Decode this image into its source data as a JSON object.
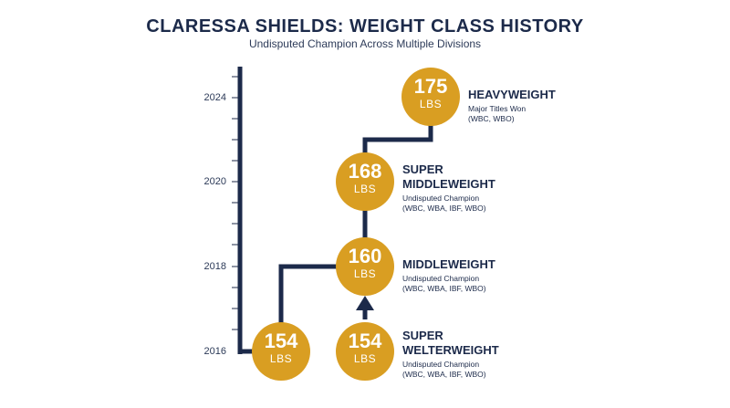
{
  "header": {
    "title": "CLARESSA SHIELDS: WEIGHT CLASS HISTORY",
    "subtitle": "Undisputed Champion Across Multiple Divisions"
  },
  "timeline": {
    "years": [
      "2024",
      "2020",
      "2018",
      "2016"
    ]
  },
  "nodes": [
    {
      "weight": "154",
      "unit": "LBS",
      "name": "",
      "line1": "",
      "line2": ""
    },
    {
      "weight": "154",
      "unit": "LBS",
      "name_line1": "SUPER",
      "name_line2": "WELTERWEIGHT",
      "line1": "Undisputed Champion",
      "line2": "(WBC, WBA, IBF, WBO)"
    },
    {
      "weight": "160",
      "unit": "LBS",
      "name_line1": "MIDDLEWEIGHT",
      "line1": "Undisputed Champion",
      "line2": "(WBC, WBA, IBF, WBO)"
    },
    {
      "weight": "168",
      "unit": "LBS",
      "name_line1": "SUPER",
      "name_line2": "MIDDLEWEIGHT",
      "line1": "Undisputed Champion",
      "line2": "(WBC, WBA, IBF, WBO)"
    },
    {
      "weight": "175",
      "unit": "LBS",
      "name_line1": "HEAVYWEIGHT",
      "line1": "Major Titles Won",
      "line2": "(WBC, WBO)"
    }
  ],
  "colors": {
    "navy": "#1c2a4a",
    "gold": "#d99e22"
  }
}
